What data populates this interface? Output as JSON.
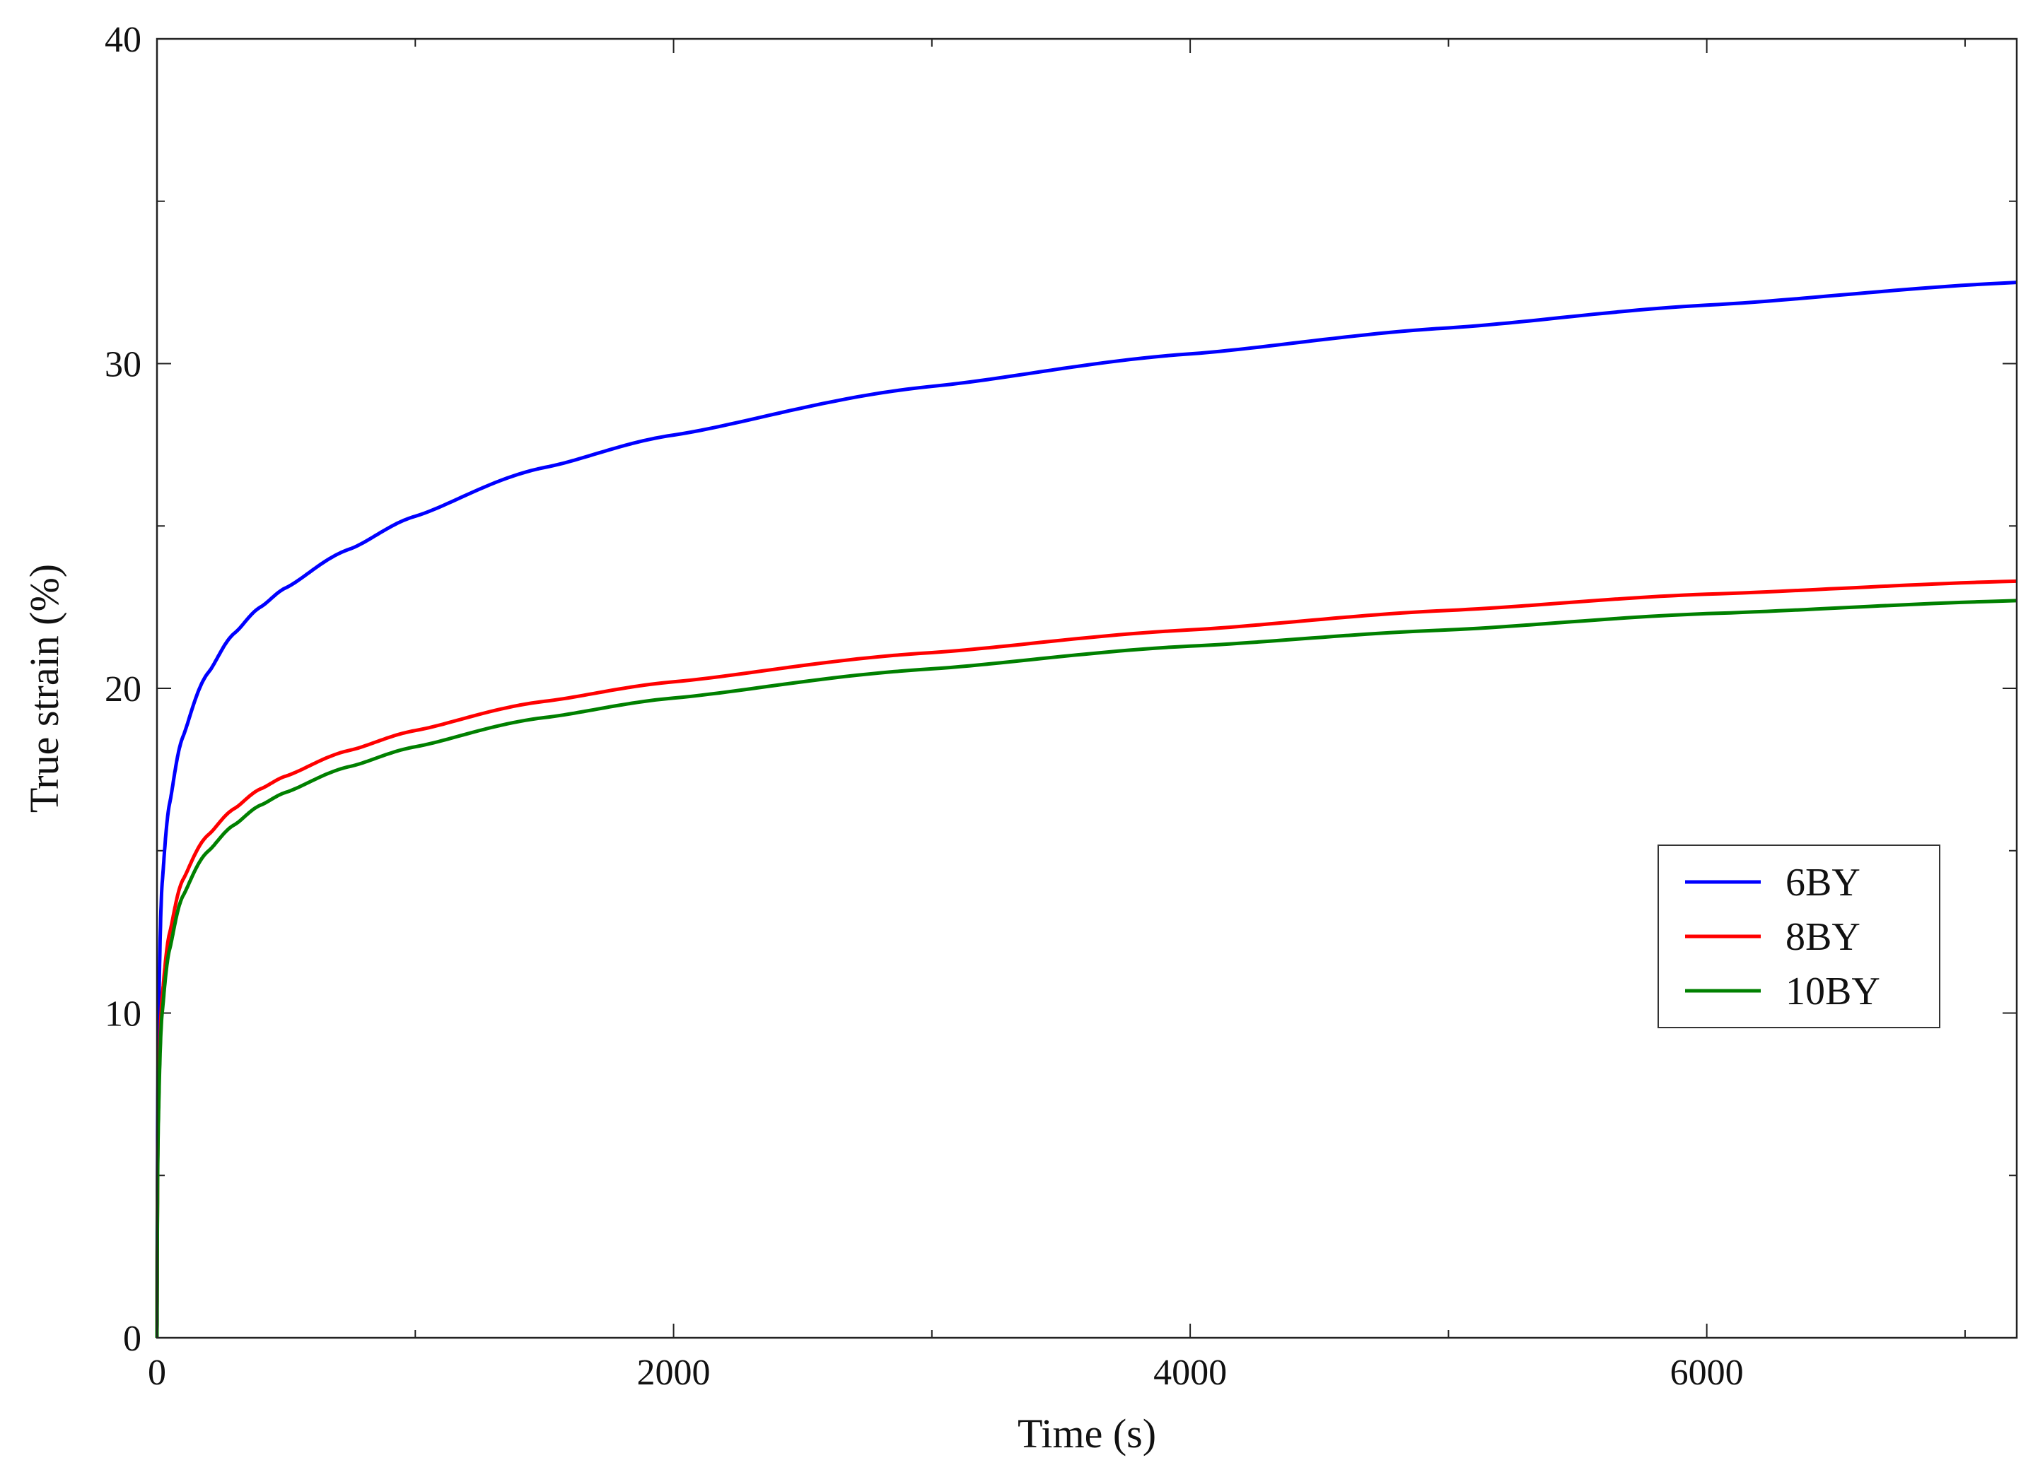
{
  "chart_data": {
    "type": "line",
    "title": "",
    "xlabel": "Time (s)",
    "ylabel": "True strain (%)",
    "xlim": [
      0,
      7200
    ],
    "ylim": [
      0,
      40
    ],
    "x_ticks": [
      0,
      2000,
      4000,
      6000
    ],
    "x_tick_labels": [
      "0",
      "2000",
      "4000",
      "6000"
    ],
    "x_minor_ticks": [
      1000,
      3000,
      5000,
      7000
    ],
    "y_ticks": [
      0,
      10,
      20,
      30,
      40
    ],
    "y_tick_labels": [
      "0",
      "10",
      "20",
      "30",
      "40"
    ],
    "y_minor_ticks": [
      5,
      15,
      25,
      35
    ],
    "grid": false,
    "legend_position": "right",
    "series": [
      {
        "name": "6BY",
        "color": "#0000ff",
        "x": [
          0,
          5,
          20,
          50,
          100,
          200,
          300,
          400,
          500,
          750,
          1000,
          1500,
          2000,
          3000,
          4000,
          5000,
          6000,
          7200
        ],
        "y": [
          0,
          9,
          14,
          16.5,
          18.5,
          20.5,
          21.7,
          22.5,
          23.1,
          24.3,
          25.3,
          26.8,
          27.8,
          29.3,
          30.3,
          31.1,
          31.8,
          32.5
        ]
      },
      {
        "name": "8BY",
        "color": "#ff0000",
        "x": [
          0,
          5,
          20,
          50,
          100,
          200,
          300,
          400,
          500,
          750,
          1000,
          1500,
          2000,
          3000,
          4000,
          5000,
          6000,
          7200
        ],
        "y": [
          0,
          7,
          10.5,
          12.5,
          14.1,
          15.5,
          16.3,
          16.9,
          17.3,
          18.1,
          18.7,
          19.6,
          20.2,
          21.1,
          21.8,
          22.4,
          22.9,
          23.3
        ]
      },
      {
        "name": "10BY",
        "color": "#008000",
        "x": [
          0,
          5,
          20,
          50,
          100,
          200,
          300,
          400,
          500,
          750,
          1000,
          1500,
          2000,
          3000,
          4000,
          5000,
          6000,
          7200
        ],
        "y": [
          0,
          6.5,
          10,
          12,
          13.6,
          15,
          15.8,
          16.4,
          16.8,
          17.6,
          18.2,
          19.1,
          19.7,
          20.6,
          21.3,
          21.8,
          22.3,
          22.7
        ]
      }
    ]
  }
}
